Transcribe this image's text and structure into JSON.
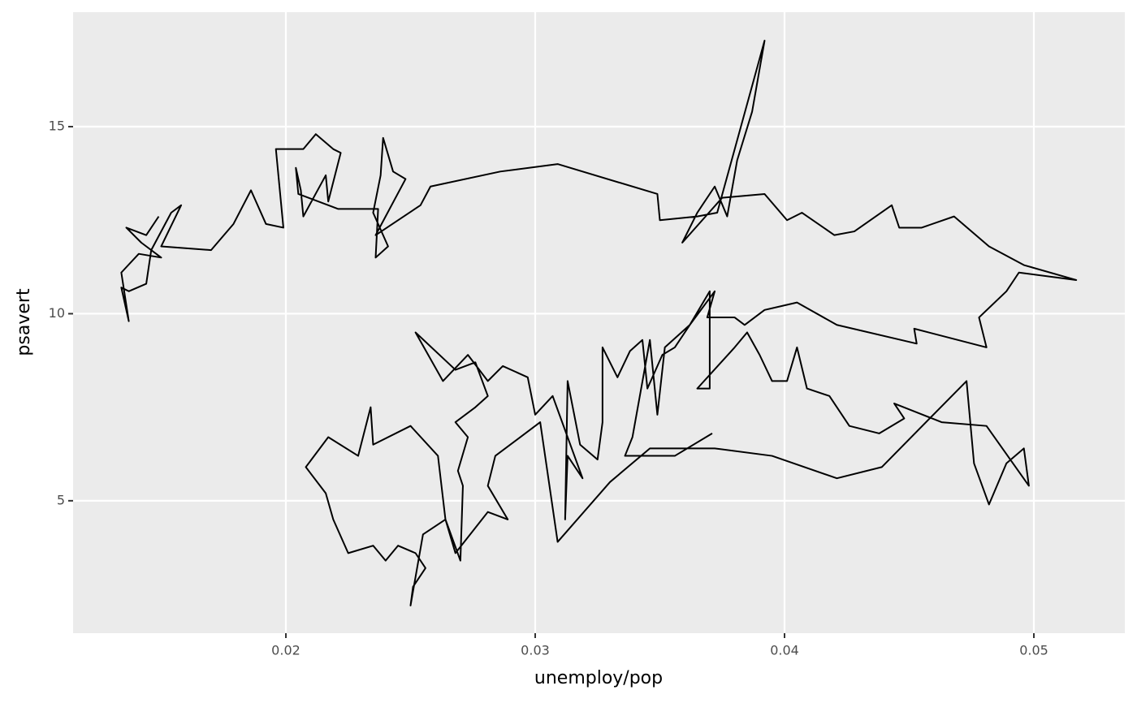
{
  "chart_data": {
    "type": "path",
    "x_label": "unemploy/pop",
    "y_label": "psavert",
    "xlim": [
      0.011466,
      0.053648
    ],
    "ylim": [
      1.46,
      18.06
    ],
    "xticks": [
      0.02,
      0.03,
      0.04,
      0.05
    ],
    "yticks": [
      5,
      10,
      15
    ],
    "grid": true,
    "color": "#000000",
    "x": [
      0.0149,
      0.0144,
      0.0136,
      0.0142,
      0.015,
      0.0141,
      0.0134,
      0.0137,
      0.0134,
      0.0137,
      0.0144,
      0.0146,
      0.0154,
      0.0158,
      0.015,
      0.017,
      0.0179,
      0.0186,
      0.0192,
      0.0199,
      0.0196,
      0.0207,
      0.0212,
      0.0219,
      0.0222,
      0.0217,
      0.0216,
      0.0207,
      0.0206,
      0.0204,
      0.0205,
      0.0221,
      0.0237,
      0.0236,
      0.0241,
      0.0235,
      0.0238,
      0.0239,
      0.0243,
      0.0248,
      0.024,
      0.0236,
      0.0254,
      0.0258,
      0.0286,
      0.0309,
      0.0349,
      0.035,
      0.0365,
      0.0373,
      0.0392,
      0.0387,
      0.0381,
      0.0377,
      0.0372,
      0.0365,
      0.0359,
      0.0375,
      0.0392,
      0.0401,
      0.0407,
      0.042,
      0.0428,
      0.0443,
      0.0446,
      0.0455,
      0.0468,
      0.0482,
      0.0496,
      0.0517,
      0.0494,
      0.0489,
      0.0478,
      0.0481,
      0.0452,
      0.0453,
      0.0421,
      0.0405,
      0.0392,
      0.0384,
      0.038,
      0.0369,
      0.0372,
      0.0362,
      0.0356,
      0.0351,
      0.0345,
      0.0343,
      0.0338,
      0.0333,
      0.0327,
      0.0327,
      0.0325,
      0.0318,
      0.0313,
      0.0312,
      0.0313,
      0.0319,
      0.0307,
      0.03,
      0.0297,
      0.0287,
      0.0281,
      0.0273,
      0.0263,
      0.0252,
      0.0268,
      0.0276,
      0.0281,
      0.0276,
      0.0268,
      0.0273,
      0.0269,
      0.0271,
      0.027,
      0.0264,
      0.0255,
      0.025,
      0.0251,
      0.0256,
      0.0252,
      0.0245,
      0.024,
      0.0235,
      0.0225,
      0.0219,
      0.0216,
      0.0208,
      0.0217,
      0.0229,
      0.0234,
      0.0235,
      0.025,
      0.0261,
      0.0264,
      0.0268,
      0.0281,
      0.0289,
      0.0281,
      0.0284,
      0.0294,
      0.0302,
      0.0309,
      0.033,
      0.0346,
      0.0372,
      0.0395,
      0.0421,
      0.0439,
      0.0473,
      0.0476,
      0.0482,
      0.0489,
      0.0496,
      0.0498,
      0.0481,
      0.0463,
      0.0444,
      0.0448,
      0.0438,
      0.0426,
      0.0418,
      0.0409,
      0.0405,
      0.0401,
      0.0395,
      0.039,
      0.0385,
      0.038,
      0.0365,
      0.037,
      0.037,
      0.0362,
      0.0352,
      0.0349,
      0.0346,
      0.0339,
      0.0336,
      0.0356,
      0.0371
    ],
    "values": [
      12.6,
      12.1,
      12.3,
      11.9,
      11.5,
      11.6,
      11.1,
      9.8,
      10.7,
      10.6,
      10.8,
      11.7,
      12.7,
      12.9,
      11.8,
      11.7,
      12.4,
      13.3,
      12.4,
      12.3,
      14.4,
      14.4,
      14.8,
      14.4,
      14.3,
      13.0,
      13.7,
      12.6,
      13.3,
      13.9,
      13.2,
      12.8,
      12.8,
      11.5,
      11.8,
      12.7,
      13.7,
      14.7,
      13.8,
      13.6,
      12.6,
      12.1,
      12.9,
      13.4,
      13.8,
      14.0,
      13.2,
      12.5,
      12.6,
      12.7,
      17.3,
      15.4,
      14.1,
      12.6,
      13.4,
      12.7,
      11.9,
      13.1,
      13.2,
      12.5,
      12.7,
      12.1,
      12.2,
      12.9,
      12.3,
      12.3,
      12.6,
      11.8,
      11.3,
      10.9,
      11.1,
      10.6,
      9.9,
      9.1,
      9.6,
      9.2,
      9.7,
      10.3,
      10.1,
      9.7,
      9.9,
      9.9,
      10.6,
      9.7,
      9.1,
      8.9,
      8.0,
      9.3,
      9.0,
      8.3,
      9.1,
      7.1,
      6.1,
      6.5,
      8.2,
      4.5,
      6.2,
      5.6,
      7.8,
      7.3,
      8.3,
      8.6,
      8.2,
      8.9,
      8.2,
      9.5,
      8.5,
      8.7,
      7.8,
      7.5,
      7.1,
      6.7,
      5.8,
      5.4,
      3.4,
      4.5,
      4.1,
      2.2,
      2.7,
      3.2,
      3.6,
      3.8,
      3.4,
      3.8,
      3.6,
      4.5,
      5.2,
      5.9,
      6.7,
      6.2,
      7.5,
      6.5,
      7.0,
      6.2,
      4.5,
      3.6,
      4.7,
      4.5,
      5.4,
      6.2,
      6.7,
      7.1,
      3.9,
      5.5,
      6.4,
      6.4,
      6.2,
      5.6,
      5.9,
      8.2,
      6.0,
      4.9,
      6.0,
      6.4,
      5.4,
      7.0,
      7.1,
      7.6,
      7.2,
      6.8,
      7.0,
      7.8,
      8.0,
      9.1,
      8.2,
      8.2,
      8.9,
      9.5,
      9.1,
      8.0,
      8.0,
      10.6,
      9.7,
      9.1,
      7.3,
      9.3,
      6.7,
      6.2,
      6.2,
      6.8
    ]
  }
}
